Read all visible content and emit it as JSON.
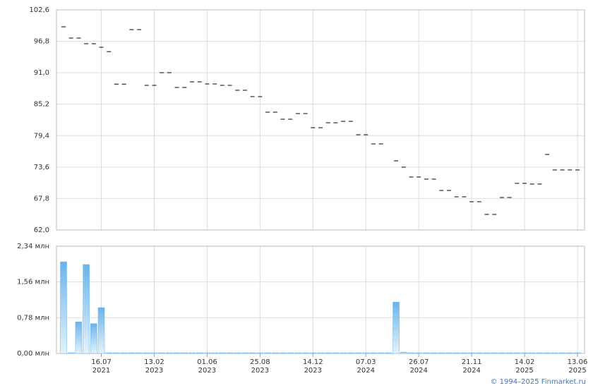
{
  "chart_data": [
    {
      "type": "dash",
      "color": "#000000",
      "values": [
        99.48,
        97.4,
        97.4,
        96.36,
        96.36,
        95.7,
        94.9,
        88.9,
        88.9,
        98.96,
        98.96,
        88.68,
        88.68,
        91.02,
        91.02,
        88.29,
        88.29,
        89.33,
        89.33,
        88.94,
        88.94,
        88.68,
        88.68,
        87.77,
        87.77,
        86.6,
        86.6,
        83.73,
        83.73,
        82.43,
        82.43,
        83.47,
        83.47,
        80.87,
        80.87,
        81.78,
        81.78,
        82.04,
        82.04,
        79.57,
        79.57,
        77.88,
        77.88,
        null,
        74.76,
        73.59,
        71.77,
        71.77,
        71.38,
        71.38,
        69.29,
        69.29,
        68.12,
        68.12,
        67.21,
        67.21,
        64.87,
        64.87,
        67.99,
        67.99,
        70.6,
        70.6,
        70.47,
        70.47,
        75.93,
        73.07,
        73.07,
        73.07,
        73.07
      ],
      "ylim": [
        62.0,
        102.6
      ],
      "yticks": [
        {
          "value": 62.0,
          "label": "62,0"
        },
        {
          "value": 67.8,
          "label": "67,8"
        },
        {
          "value": 73.6,
          "label": "73,6"
        },
        {
          "value": 79.4,
          "label": "79,4"
        },
        {
          "value": 85.2,
          "label": "85,2"
        },
        {
          "value": 91.0,
          "label": "91,0"
        },
        {
          "value": 96.8,
          "label": "96,8"
        },
        {
          "value": 102.6,
          "label": "102,6"
        }
      ],
      "grid": true
    },
    {
      "type": "bar",
      "color": "#6ab4ec",
      "categories": [
        null,
        null,
        null,
        null,
        null,
        "16.07 2021",
        null,
        null,
        null,
        null,
        null,
        null,
        "13.02 2023",
        null,
        null,
        null,
        null,
        null,
        null,
        "01.06 2023",
        null,
        null,
        null,
        null,
        null,
        null,
        "25.08 2023",
        null,
        null,
        null,
        null,
        null,
        null,
        "14.12 2023",
        null,
        null,
        null,
        null,
        null,
        null,
        "07.03 2024",
        null,
        null,
        null,
        null,
        null,
        null,
        "26.07 2024",
        null,
        null,
        null,
        null,
        null,
        null,
        "21.11 2024",
        null,
        null,
        null,
        null,
        null,
        null,
        "14.02 2025",
        null,
        null,
        null,
        null,
        null,
        null,
        "13.06 2025"
      ],
      "values": [
        2.0,
        0.01,
        0.69,
        1.94,
        0.65,
        1.0,
        0,
        0,
        0,
        0,
        0,
        0,
        0,
        0,
        0,
        0,
        0,
        0,
        0,
        0,
        0,
        0,
        0,
        0,
        0,
        0,
        0,
        0,
        0,
        0,
        0,
        0,
        0,
        0,
        0,
        0,
        0,
        0,
        0,
        0,
        0,
        0,
        0,
        0,
        1.12,
        0.03,
        0,
        0,
        0,
        0,
        0,
        0,
        0,
        0,
        0,
        0,
        0,
        0,
        0,
        0,
        0,
        0,
        0,
        0,
        0,
        0,
        0,
        0,
        0
      ],
      "ylim": [
        0,
        2.34
      ],
      "yticks": [
        {
          "value": 0,
          "label": "0,00 млн"
        },
        {
          "value": 0.78,
          "label": "0,78 млн"
        },
        {
          "value": 1.56,
          "label": "1,56 млн"
        },
        {
          "value": 2.34,
          "label": "2,34 млн"
        }
      ],
      "grid": true
    }
  ],
  "credit": "© 1994–2025 Finmarket.ru"
}
